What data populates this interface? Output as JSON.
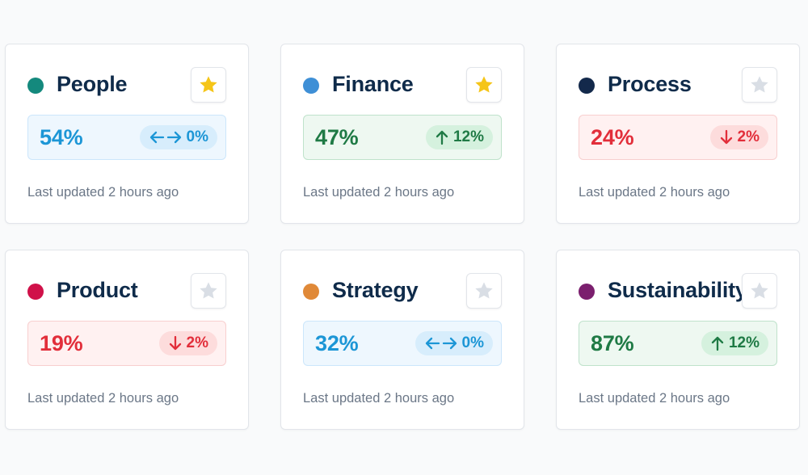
{
  "colors": {
    "star_filled": "#f5c518",
    "star_empty": "#d9dee5",
    "neutral": "#1c96d6",
    "up": "#1f7a45",
    "down": "#e22e3a"
  },
  "cards": [
    {
      "title": "People",
      "dot_color": "#14897d",
      "starred": true,
      "value": "54%",
      "trend": "neutral",
      "trend_icon": "left-right-arrow-icon",
      "delta": "0%",
      "updated": "Last updated 2 hours ago"
    },
    {
      "title": "Finance",
      "dot_color": "#3e8fd6",
      "starred": true,
      "value": "47%",
      "trend": "up",
      "trend_icon": "arrow-up-icon",
      "delta": "12%",
      "updated": "Last updated 2 hours ago"
    },
    {
      "title": "Process",
      "dot_color": "#13294b",
      "starred": false,
      "value": "24%",
      "trend": "down",
      "trend_icon": "arrow-down-icon",
      "delta": "2%",
      "updated": "Last updated 2 hours ago"
    },
    {
      "title": "Product",
      "dot_color": "#d01149",
      "starred": false,
      "value": "19%",
      "trend": "down",
      "trend_icon": "arrow-down-icon",
      "delta": "2%",
      "updated": "Last updated 2 hours ago"
    },
    {
      "title": "Strategy",
      "dot_color": "#e08938",
      "starred": false,
      "value": "32%",
      "trend": "neutral",
      "trend_icon": "left-right-arrow-icon",
      "delta": "0%",
      "updated": "Last updated 2 hours ago"
    },
    {
      "title": "Sustainability",
      "dot_color": "#7b1f6e",
      "starred": false,
      "value": "87%",
      "trend": "up",
      "trend_icon": "arrow-up-icon",
      "delta": "12%",
      "updated": "Last updated 2 hours ago"
    }
  ]
}
